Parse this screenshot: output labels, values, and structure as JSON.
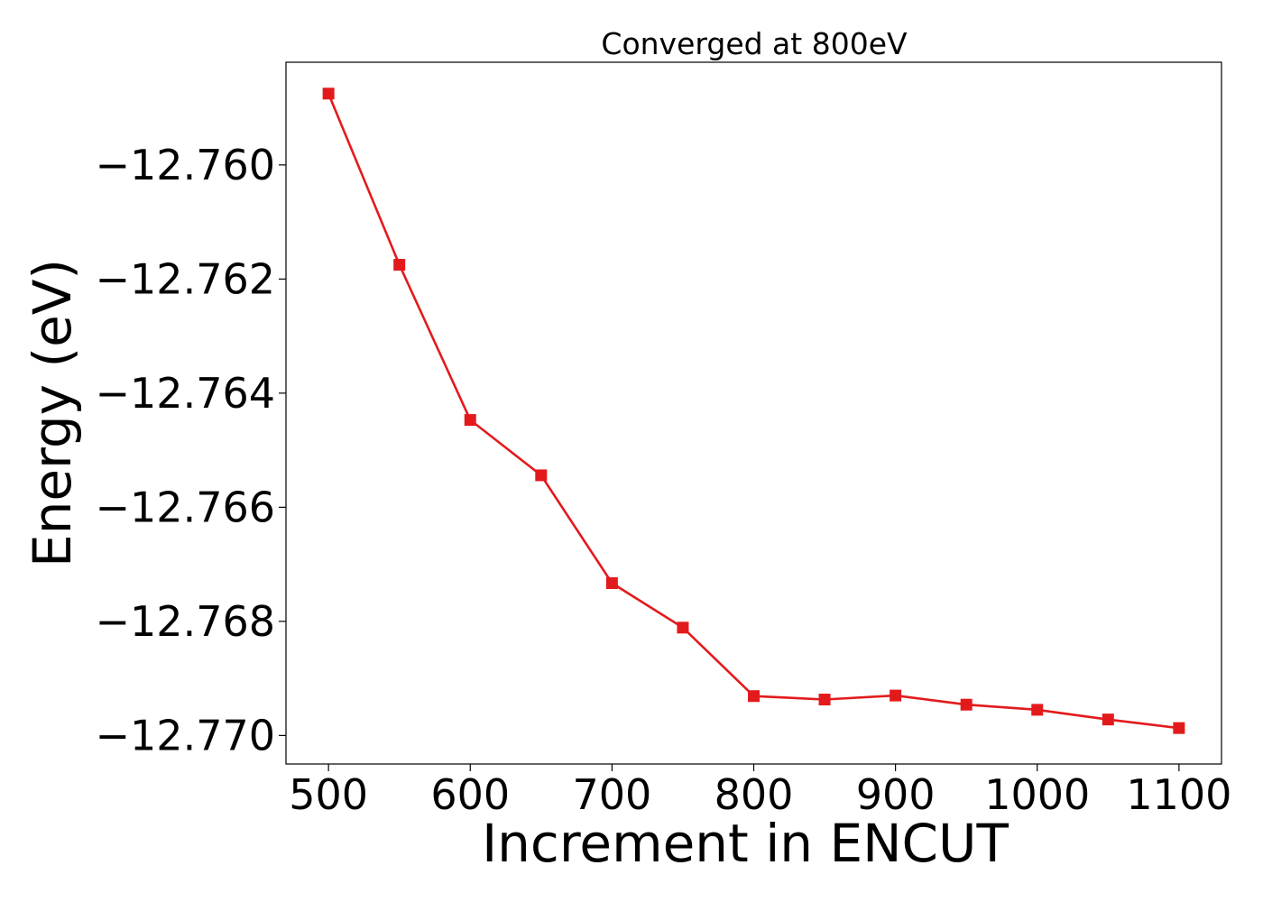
{
  "chart_data": {
    "type": "line",
    "title": "Converged at 800eV",
    "xlabel": "Increment in ENCUT",
    "ylabel": "Energy (eV)",
    "xlim": [
      470,
      1130
    ],
    "ylim": [
      -12.7705,
      -12.7582
    ],
    "x_ticks": [
      500,
      600,
      700,
      800,
      900,
      1000,
      1100
    ],
    "y_ticks": [
      -12.76,
      -12.762,
      -12.764,
      -12.766,
      -12.768,
      -12.77
    ],
    "x_tick_labels": [
      "500",
      "600",
      "700",
      "800",
      "900",
      "1000",
      "1100"
    ],
    "y_tick_labels": [
      "−12.760",
      "−12.762",
      "−12.764",
      "−12.766",
      "−12.768",
      "−12.770"
    ],
    "grid": false,
    "legend": "none",
    "series": [
      {
        "marker": "square",
        "color": "#e31a1c",
        "x": [
          500,
          550,
          600,
          650,
          700,
          750,
          800,
          850,
          900,
          950,
          1000,
          1050,
          1100
        ],
        "y": [
          -12.75875,
          -12.76175,
          -12.76447,
          -12.76544,
          -12.76733,
          -12.76811,
          -12.76931,
          -12.76937,
          -12.7693,
          -12.76946,
          -12.76955,
          -12.76972,
          -12.76987
        ]
      }
    ]
  }
}
